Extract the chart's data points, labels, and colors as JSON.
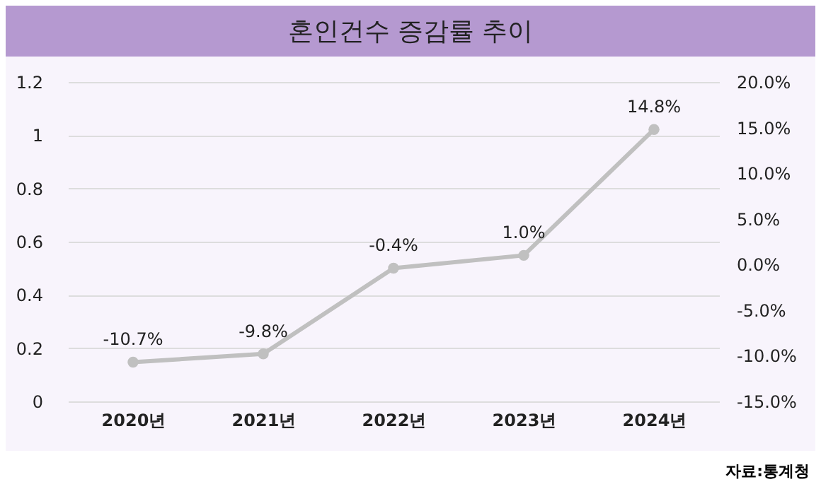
{
  "chart_data": {
    "type": "line",
    "title": "혼인건수 증감률 추이",
    "categories": [
      "2020년",
      "2021년",
      "2022년",
      "2023년",
      "2024년"
    ],
    "series": [
      {
        "color": "#c0c0c0",
        "axis": "y2",
        "values": [
          -10.7,
          -9.8,
          -0.4,
          1.0,
          14.8
        ],
        "value_labels": [
          "-10.7%",
          "-9.8%",
          "-0.4%",
          "1.0%",
          "14.8%"
        ]
      }
    ],
    "ylim": [
      0,
      1.2
    ],
    "yticks": [
      0,
      0.2,
      0.4,
      0.6,
      0.8,
      1,
      1.2
    ],
    "y2lim": [
      -15,
      20
    ],
    "y2ticks": [
      {
        "value": -15,
        "label": "-15.0%"
      },
      {
        "value": -10,
        "label": "-10.0%"
      },
      {
        "value": -5,
        "label": "-5.0%"
      },
      {
        "value": 0,
        "label": "0.0%"
      },
      {
        "value": 5,
        "label": "5.0%"
      },
      {
        "value": 10,
        "label": "10.0%"
      },
      {
        "value": 15,
        "label": "15.0%"
      },
      {
        "value": 20,
        "label": "20.0%"
      }
    ],
    "grid": "y",
    "marker": "circle",
    "annotations": [
      "자료:통계청"
    ]
  }
}
